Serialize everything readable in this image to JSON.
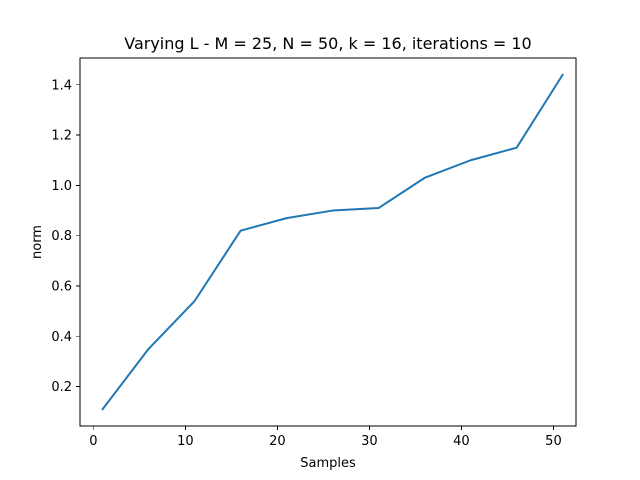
{
  "chart_data": {
    "type": "line",
    "title": "Varying L - M = 25, N = 50, k = 16, iterations = 10",
    "xlabel": "Samples",
    "ylabel": "norm",
    "xlim": [
      -1.45,
      52.45
    ],
    "ylim": [
      0.0435,
      1.5065
    ],
    "x_ticks": [
      0,
      10,
      20,
      30,
      40,
      50
    ],
    "x_tick_labels": [
      "0",
      "10",
      "20",
      "30",
      "40",
      "50"
    ],
    "y_ticks": [
      0.2,
      0.4,
      0.6,
      0.8,
      1.0,
      1.2,
      1.4
    ],
    "y_tick_labels": [
      "0.2",
      "0.4",
      "0.6",
      "0.8",
      "1.0",
      "1.2",
      "1.4"
    ],
    "grid": false,
    "series": [
      {
        "color": "#1f77b4",
        "x": [
          1,
          6,
          11,
          16,
          21,
          26,
          31,
          36,
          41,
          46,
          51
        ],
        "y": [
          0.11,
          0.35,
          0.54,
          0.82,
          0.87,
          0.9,
          0.91,
          1.03,
          1.1,
          1.15,
          1.44
        ]
      }
    ]
  }
}
